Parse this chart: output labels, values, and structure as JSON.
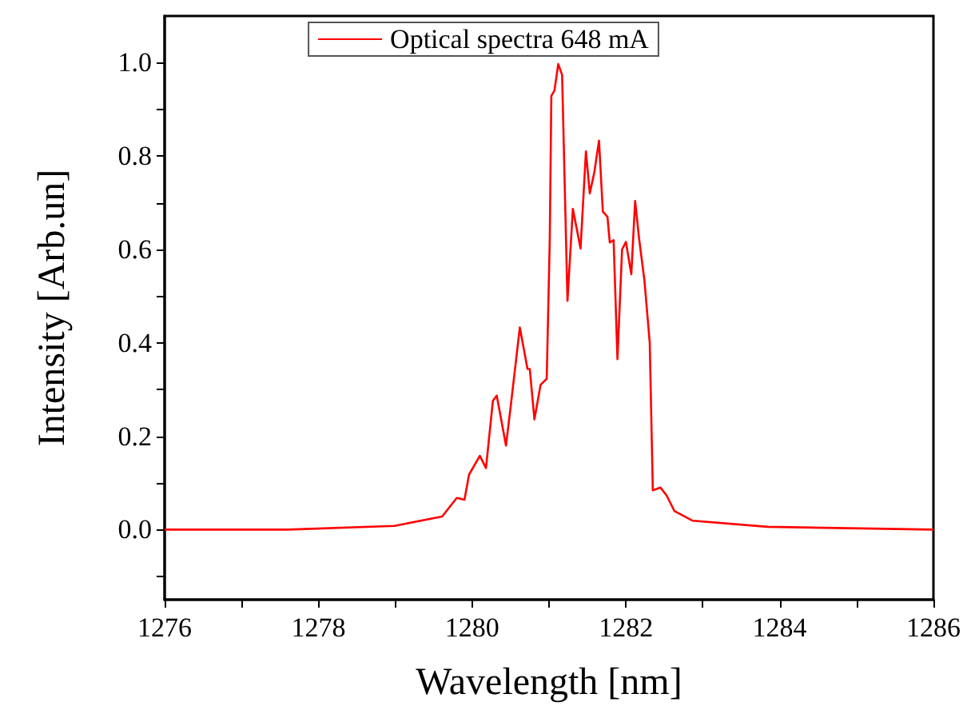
{
  "chart_data": {
    "type": "line",
    "xlabel": "Wavelength [nm]",
    "ylabel": "Intensity [Arb.un]",
    "xlim": [
      1276,
      1286
    ],
    "ylim": [
      -0.15,
      1.1
    ],
    "xticks": [
      1276,
      {
        "value": 1277,
        "label": null
      },
      1278,
      {
        "value": 1279,
        "label": null
      },
      1280,
      {
        "value": 1281,
        "label": null
      },
      1282,
      {
        "value": 1283,
        "label": null
      },
      1284,
      {
        "value": 1285,
        "label": null
      },
      1286
    ],
    "yticks": [
      {
        "value": -0.1,
        "label": null
      },
      {
        "value": 0,
        "label": "0.0"
      },
      {
        "value": 0.1,
        "label": null
      },
      {
        "value": 0.2,
        "label": "0.2"
      },
      {
        "value": 0.3,
        "label": null
      },
      {
        "value": 0.4,
        "label": "0.4"
      },
      {
        "value": 0.5,
        "label": null
      },
      {
        "value": 0.6,
        "label": "0.6"
      },
      {
        "value": 0.7,
        "label": null
      },
      {
        "value": 0.8,
        "label": "0.8"
      },
      {
        "value": 0.9,
        "label": null
      },
      {
        "value": 1,
        "label": "1.0"
      }
    ],
    "grid": false,
    "legend": "top",
    "line_style": "solid",
    "marker": "none",
    "series": [
      {
        "name": "Optical spectra 648 mA",
        "color": "#ff0000",
        "x": [
          1276,
          1277.6,
          1278.99,
          1279.61,
          1279.8,
          1279.9,
          1279.96,
          1280.1,
          1280.18,
          1280.27,
          1280.32,
          1280.44,
          1280.51,
          1280.62,
          1280.72,
          1280.75,
          1280.81,
          1280.89,
          1280.97,
          1281.01,
          1281.03,
          1281.07,
          1281.12,
          1281.17,
          1281.24,
          1281.31,
          1281.41,
          1281.48,
          1281.53,
          1281.59,
          1281.65,
          1281.7,
          1281.76,
          1281.79,
          1281.84,
          1281.89,
          1281.95,
          1282,
          1282.07,
          1282.12,
          1282.17,
          1282.24,
          1282.31,
          1282.35,
          1282.45,
          1282.53,
          1282.63,
          1282.87,
          1283.84,
          1286
        ],
        "values": [
          0,
          0,
          0.008,
          0.028,
          0.068,
          0.064,
          0.118,
          0.158,
          0.132,
          0.276,
          0.287,
          0.18,
          0.276,
          0.433,
          0.344,
          0.344,
          0.236,
          0.31,
          0.323,
          0.625,
          0.929,
          0.94,
          0.997,
          0.974,
          0.49,
          0.687,
          0.602,
          0.81,
          0.72,
          0.766,
          0.833,
          0.681,
          0.67,
          0.615,
          0.62,
          0.365,
          0.6,
          0.616,
          0.547,
          0.704,
          0.625,
          0.535,
          0.4,
          0.084,
          0.09,
          0.073,
          0.04,
          0.019,
          0.006,
          0
        ]
      }
    ]
  }
}
